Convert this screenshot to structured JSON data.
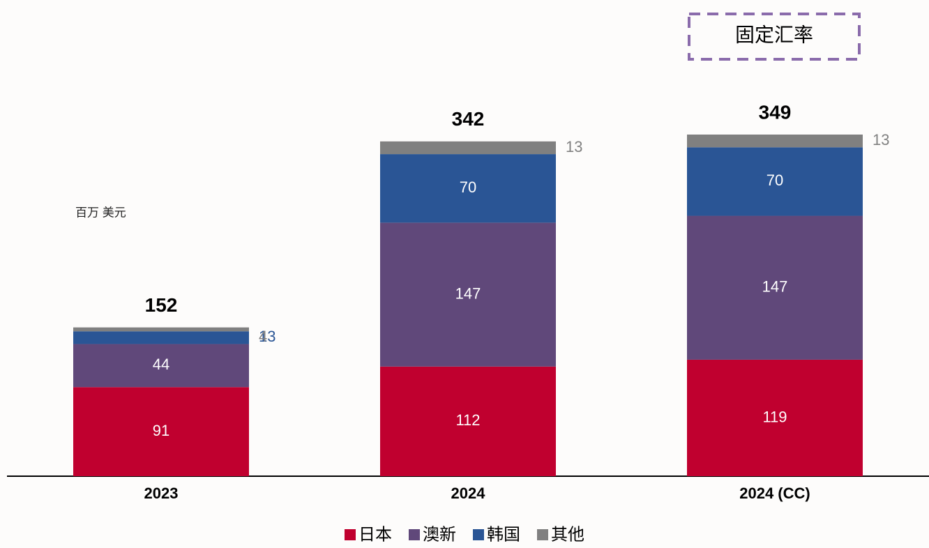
{
  "chart_data": {
    "type": "stacked-bar",
    "unit_label": "百万 美元",
    "annotation": "固定汇率",
    "categories": [
      "2023",
      "2024",
      "2024 (CC)"
    ],
    "totals": [
      152,
      342,
      349
    ],
    "series": [
      {
        "name": "日本",
        "color": "#c0002f",
        "values": [
          91,
          112,
          119
        ]
      },
      {
        "name": "澳新",
        "color": "#60487a",
        "values": [
          44,
          147,
          147
        ]
      },
      {
        "name": "韩国",
        "color": "#2a5595",
        "values": [
          13,
          70,
          70
        ]
      },
      {
        "name": "其他",
        "color": "#808080",
        "values": [
          4,
          13,
          13
        ]
      }
    ]
  }
}
